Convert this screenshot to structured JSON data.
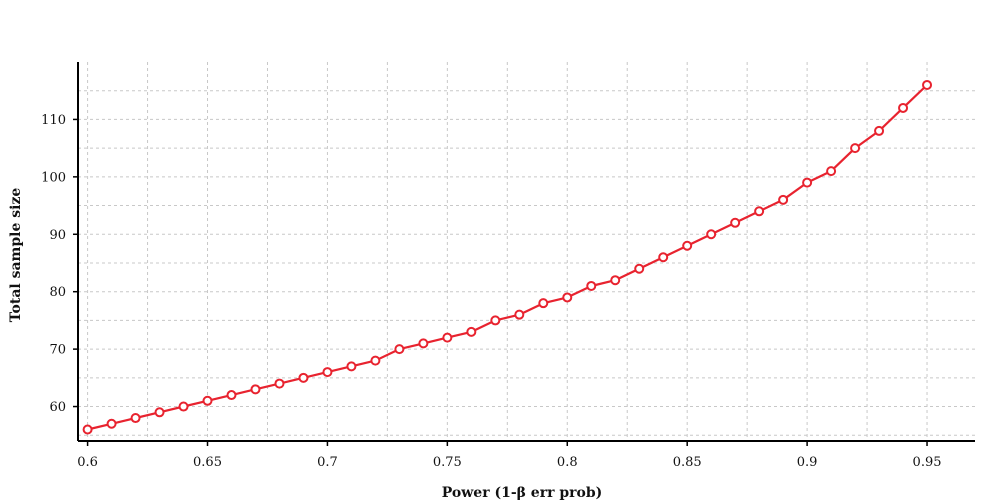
{
  "chart_data": {
    "type": "line",
    "title": "",
    "xlabel": "Power (1-β err prob)",
    "ylabel": "Total sample size",
    "xlim": [
      0.596,
      0.97
    ],
    "ylim": [
      54,
      120
    ],
    "x_ticks": [
      0.6,
      0.65,
      0.7,
      0.75,
      0.8,
      0.85,
      0.9,
      0.95
    ],
    "x_tick_labels": [
      "0.6",
      "0.65",
      "0.7",
      "0.75",
      "0.8",
      "0.85",
      "0.9",
      "0.95"
    ],
    "y_ticks": [
      60,
      70,
      80,
      90,
      100,
      110
    ],
    "y_tick_labels": [
      "60",
      "70",
      "80",
      "90",
      "100",
      "110"
    ],
    "x_grid": [
      0.6,
      0.625,
      0.65,
      0.675,
      0.7,
      0.725,
      0.75,
      0.775,
      0.8,
      0.825,
      0.85,
      0.875,
      0.9,
      0.925,
      0.95
    ],
    "y_grid": [
      55,
      60,
      65,
      70,
      75,
      80,
      85,
      90,
      95,
      100,
      105,
      110,
      115
    ],
    "grid": true,
    "colors": {
      "line": "#e8232f",
      "marker_fill": "#ffffff",
      "grid": "#c8c8c8",
      "axis": "#000000"
    },
    "series": [
      {
        "x": [
          0.6,
          0.61,
          0.62,
          0.63,
          0.64,
          0.65,
          0.66,
          0.67,
          0.68,
          0.69,
          0.7,
          0.71,
          0.72,
          0.73,
          0.74,
          0.75,
          0.76,
          0.77,
          0.78,
          0.79,
          0.8,
          0.81,
          0.82,
          0.83,
          0.84,
          0.85,
          0.86,
          0.87,
          0.88,
          0.89,
          0.9,
          0.91,
          0.92,
          0.93,
          0.94,
          0.95
        ],
        "values": [
          56,
          57,
          58,
          59,
          60,
          61,
          62,
          63,
          64,
          65,
          66,
          67,
          68,
          70,
          71,
          72,
          73,
          75,
          76,
          78,
          79,
          81,
          82,
          84,
          86,
          88,
          90,
          92,
          94,
          96,
          99,
          101,
          105,
          108,
          112,
          116
        ]
      }
    ]
  }
}
